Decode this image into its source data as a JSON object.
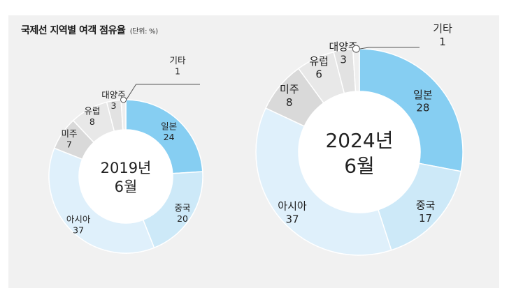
{
  "title": "국제선 지역별 여객 점유율",
  "unit": "(단위: %)",
  "colors": {
    "japan": "#86cef2",
    "china": "#cde9f8",
    "asia": "#dff0fb",
    "americas": "#d9d9d9",
    "europe": "#e8e8e8",
    "oceania": "#e2e2e2",
    "other": "#eeeeee"
  },
  "chart_data": [
    {
      "type": "pie",
      "center_label": [
        "2019년",
        "6월"
      ],
      "slices": [
        {
          "key": "japan",
          "name": "일본",
          "value": 24
        },
        {
          "key": "china",
          "name": "중국",
          "value": 20
        },
        {
          "key": "asia",
          "name": "아시아",
          "value": 37
        },
        {
          "key": "americas",
          "name": "미주",
          "value": 7
        },
        {
          "key": "europe",
          "name": "유럽",
          "value": 8
        },
        {
          "key": "oceania",
          "name": "대양주",
          "value": 3
        },
        {
          "key": "other",
          "name": "기타",
          "value": 1
        }
      ]
    },
    {
      "type": "pie",
      "center_label": [
        "2024년",
        "6월"
      ],
      "slices": [
        {
          "key": "japan",
          "name": "일본",
          "value": 28
        },
        {
          "key": "china",
          "name": "중국",
          "value": 17
        },
        {
          "key": "asia",
          "name": "아시아",
          "value": 37
        },
        {
          "key": "americas",
          "name": "미주",
          "value": 8
        },
        {
          "key": "europe",
          "name": "유럽",
          "value": 6
        },
        {
          "key": "oceania",
          "name": "대양주",
          "value": 3
        },
        {
          "key": "other",
          "name": "기타",
          "value": 1
        }
      ]
    }
  ]
}
